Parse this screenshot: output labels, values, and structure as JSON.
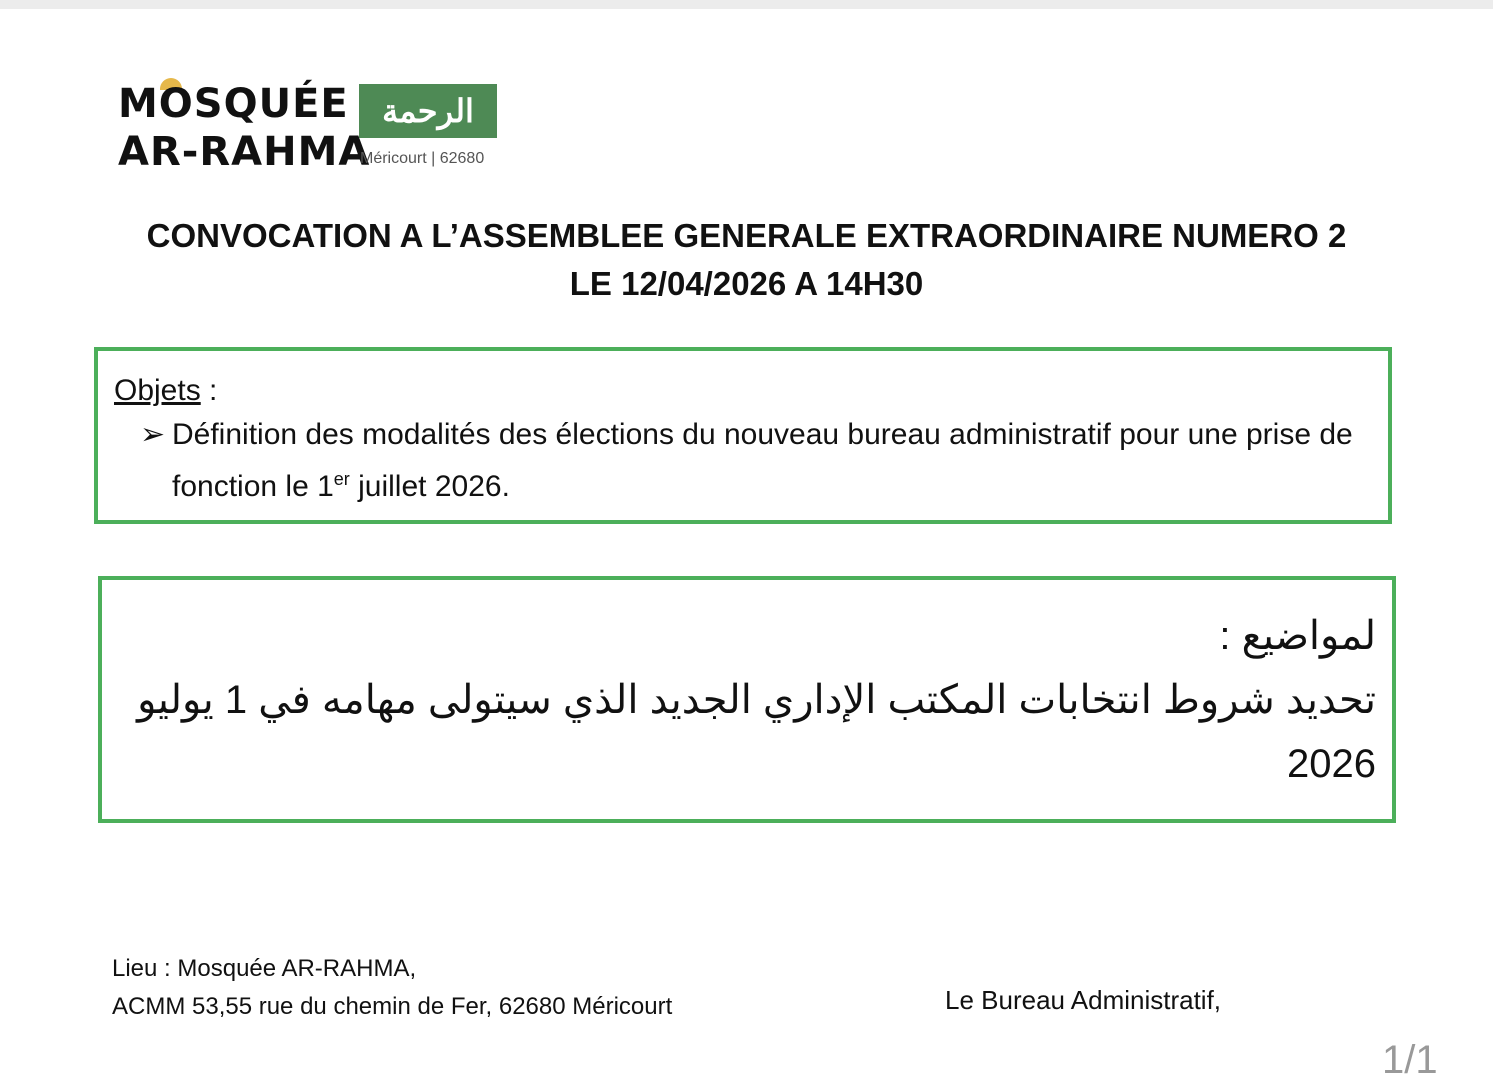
{
  "logo": {
    "line1": "MOSQUÉE",
    "line2": "AR-RAHMA",
    "arabic": "الرحمة",
    "location": "Méricourt | 62680",
    "brand_color": "#4e8a55"
  },
  "title": {
    "line1": "CONVOCATION A L’ASSEMBLEE GENERALE EXTRAORDINAIRE NUMERO 2",
    "line2": "LE 12/04/2026 A 14H30"
  },
  "objets": {
    "label": "Objets",
    "colon": " :",
    "bullet_icon": "arrow-bullet",
    "arrow": "➢",
    "text_before": "Définition des modalités des élections du nouveau bureau administratif pour une prise de fonction le 1",
    "sup": "er",
    "text_after": " juillet 2026."
  },
  "arabic_box": {
    "heading": "لمواضيع :",
    "text": "تحديد شروط انتخابات المكتب الإداري الجديد الذي سيتولى مهامه في 1 يوليو 2026"
  },
  "footer": {
    "lieu": "Lieu : Mosquée AR-RAHMA,",
    "address": "ACMM 53,55 rue du chemin de Fer, 62680 Méricourt",
    "signature": "Le Bureau Administratif,"
  },
  "page_indicator": "1/1",
  "border_color": "#4caf5a"
}
